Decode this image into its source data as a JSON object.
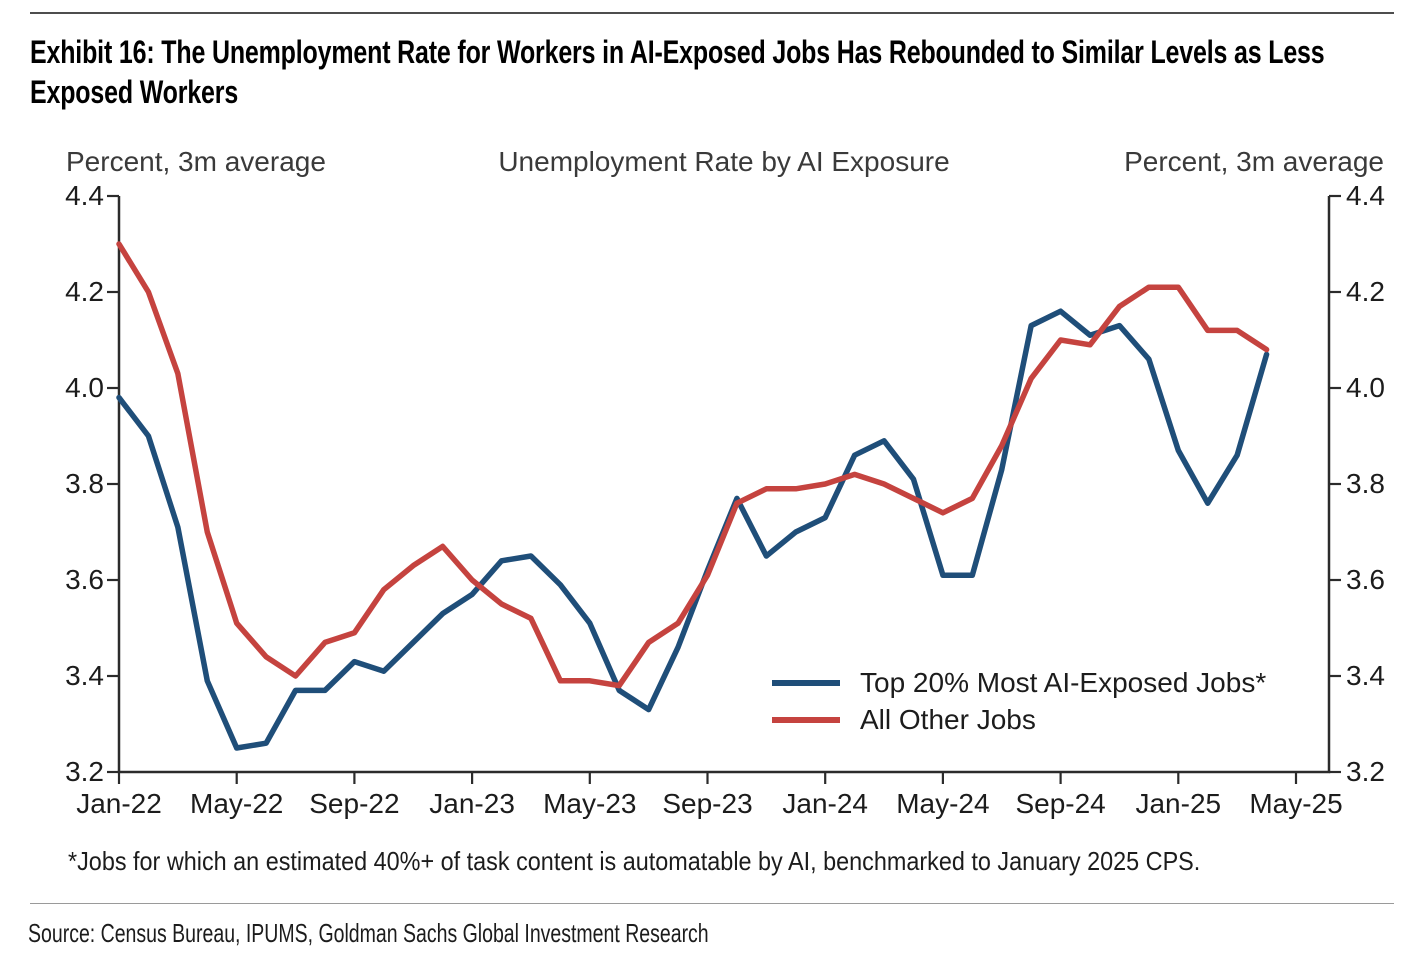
{
  "page": {
    "title": "Exhibit 16: The Unemployment Rate for Workers in AI-Exposed Jobs Has Rebounded to Similar Levels as Less Exposed Workers",
    "footnote": "*Jobs for which an estimated 40%+ of task content is automatable by AI, benchmarked to January 2025 CPS.",
    "source": "Source: Census Bureau, IPUMS, Goldman Sachs Global Investment Research"
  },
  "chart_data": {
    "type": "line",
    "title": "Unemployment Rate by AI Exposure",
    "left_axis_label": "Percent, 3m average",
    "right_axis_label": "Percent, 3m average",
    "grid": false,
    "legend_position": "inside lower right",
    "ylim": [
      3.2,
      4.4
    ],
    "y_tick_values": [
      4.4,
      4.2,
      4.0,
      3.8,
      3.6,
      3.4,
      3.2
    ],
    "y_tick_labels": [
      "4.4",
      "4.2",
      "4.0",
      "3.8",
      "3.6",
      "3.4",
      "3.2"
    ],
    "x_tick_labels": [
      "Jan-22",
      "May-22",
      "Sep-22",
      "Jan-23",
      "May-23",
      "Sep-23",
      "Jan-24",
      "May-24",
      "Sep-24",
      "Jan-25",
      "May-25"
    ],
    "x_tick_month_indices": [
      0,
      4,
      8,
      12,
      16,
      20,
      24,
      28,
      32,
      36,
      40
    ],
    "x": [
      "Jan-22",
      "Feb-22",
      "Mar-22",
      "Apr-22",
      "May-22",
      "Jun-22",
      "Jul-22",
      "Aug-22",
      "Sep-22",
      "Oct-22",
      "Nov-22",
      "Dec-22",
      "Jan-23",
      "Feb-23",
      "Mar-23",
      "Apr-23",
      "May-23",
      "Jun-23",
      "Jul-23",
      "Aug-23",
      "Sep-23",
      "Oct-23",
      "Nov-23",
      "Dec-23",
      "Jan-24",
      "Feb-24",
      "Mar-24",
      "Apr-24",
      "May-24",
      "Jun-24",
      "Jul-24",
      "Aug-24",
      "Sep-24",
      "Oct-24",
      "Nov-24",
      "Dec-24",
      "Jan-25",
      "Feb-25",
      "Mar-25",
      "Apr-25"
    ],
    "series": [
      {
        "name": "Top 20% Most AI-Exposed Jobs*",
        "color": "#1F4E79",
        "values": [
          3.98,
          3.9,
          3.71,
          3.39,
          3.25,
          3.26,
          3.37,
          3.37,
          3.43,
          3.41,
          3.47,
          3.53,
          3.57,
          3.64,
          3.65,
          3.59,
          3.51,
          3.37,
          3.33,
          3.46,
          3.62,
          3.77,
          3.65,
          3.7,
          3.73,
          3.86,
          3.89,
          3.81,
          3.61,
          3.61,
          3.83,
          4.13,
          4.16,
          4.11,
          4.13,
          4.06,
          3.87,
          3.76,
          3.86,
          4.07
        ]
      },
      {
        "name": "All Other Jobs",
        "color": "#C5433F",
        "values": [
          4.3,
          4.2,
          4.03,
          3.7,
          3.51,
          3.44,
          3.4,
          3.47,
          3.49,
          3.58,
          3.63,
          3.67,
          3.6,
          3.55,
          3.52,
          3.39,
          3.39,
          3.38,
          3.47,
          3.51,
          3.61,
          3.76,
          3.79,
          3.79,
          3.8,
          3.82,
          3.8,
          3.77,
          3.74,
          3.77,
          3.88,
          4.02,
          4.1,
          4.09,
          4.17,
          4.21,
          4.21,
          4.12,
          4.12,
          4.08
        ]
      }
    ],
    "axis_color": "#2b2b2b",
    "line_width": 5.5
  }
}
